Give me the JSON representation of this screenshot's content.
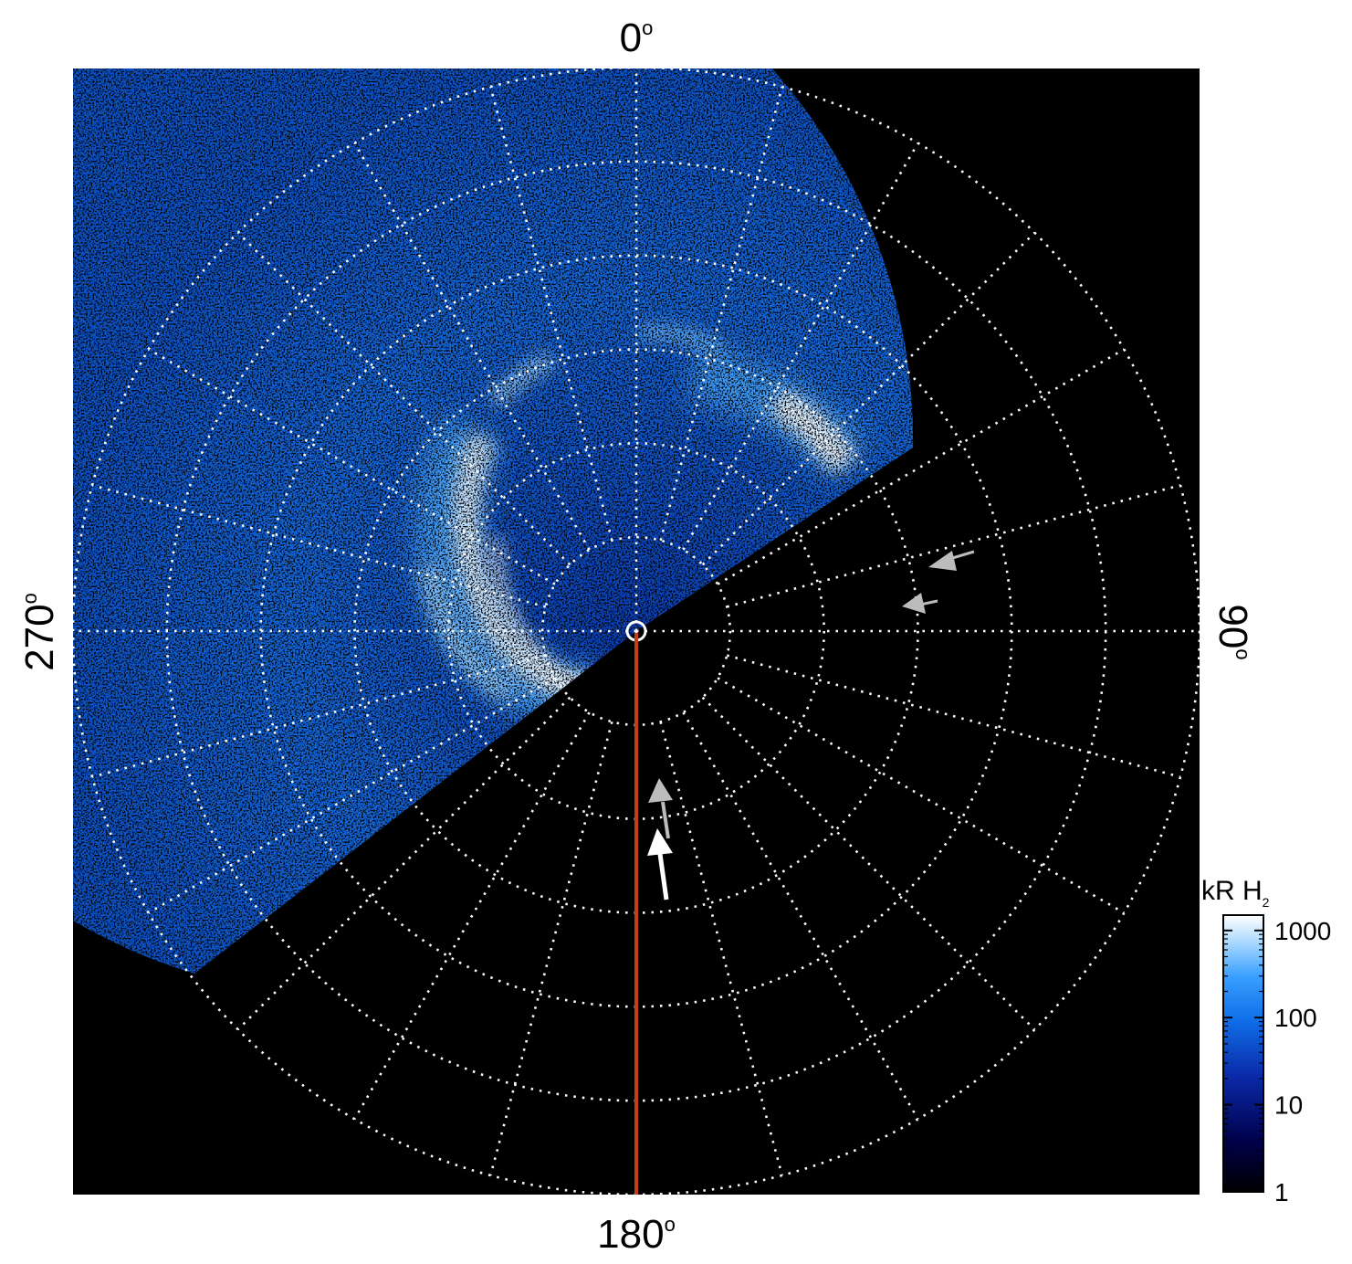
{
  "figure": {
    "angle_labels": {
      "top": {
        "value": "0",
        "degree": "o"
      },
      "bottom": {
        "value": "180",
        "degree": "o"
      },
      "left": {
        "value": "270",
        "degree": "o"
      },
      "right": {
        "value": "90",
        "degree": "o"
      }
    },
    "colorbar": {
      "unit_label": "kR H",
      "unit_subscript": "2",
      "ticks": [
        "1000",
        "100",
        "10",
        "1"
      ],
      "scale": "log",
      "range": [
        1,
        1500
      ],
      "colors": [
        "#000000",
        "#00004a",
        "#0a2aa8",
        "#0f6ee8",
        "#3aa0ff",
        "#a8d8ff",
        "#ffffff"
      ]
    },
    "grid": {
      "style": "dotted",
      "color": "#ffffff",
      "meridians_deg": 15,
      "rings": 6
    },
    "colors": {
      "background": "#000000",
      "meridian_line": "#c83a1c",
      "arrow_white": "#ffffff",
      "arrow_gray": "#bcbcbc"
    },
    "annotations": [
      "white-arrow",
      "gray-arrow",
      "gray-arrow",
      "gray-arrow",
      "red-meridian-line"
    ]
  }
}
